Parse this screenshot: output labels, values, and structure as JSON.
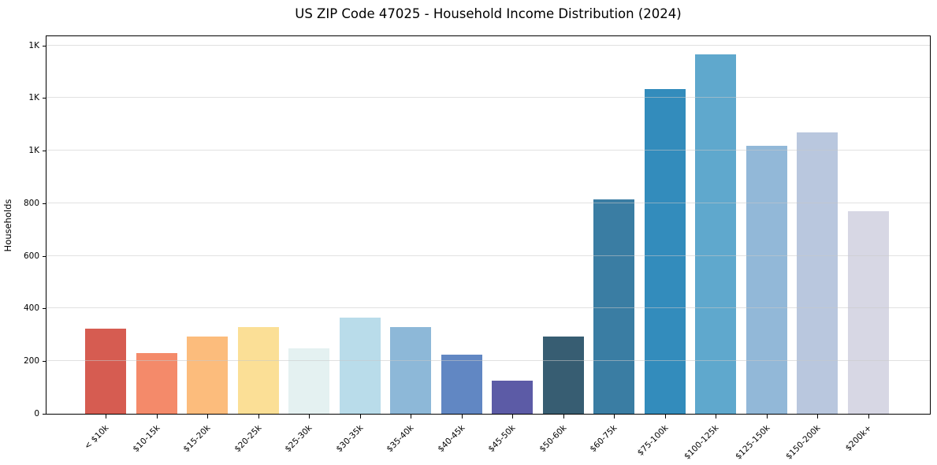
{
  "chart_data": {
    "type": "bar",
    "title": "US ZIP Code 47025 - Household Income Distribution (2024)",
    "xlabel": "",
    "ylabel": "Households",
    "categories": [
      "< $10k",
      "$10-15k",
      "$15-20k",
      "$20-25k",
      "$25-30k",
      "$30-35k",
      "$35-40k",
      "$40-45k",
      "$45-50k",
      "$50-60k",
      "$60-75k",
      "$75-100k",
      "$100-125k",
      "$125-150k",
      "$150-200k",
      "$200k+"
    ],
    "values": [
      325,
      230,
      295,
      330,
      250,
      365,
      330,
      225,
      125,
      295,
      815,
      1235,
      1365,
      1020,
      1070,
      770
    ],
    "bar_colors": [
      "#d65c51",
      "#f48a6a",
      "#fcbc7c",
      "#fbdf96",
      "#e4f1f1",
      "#b9dcea",
      "#8db8d8",
      "#6187c3",
      "#5c5ba6",
      "#375d72",
      "#3a7da3",
      "#338cbc",
      "#5fa8cd",
      "#92b8d8",
      "#b9c7de",
      "#d7d7e4"
    ],
    "ylim": [
      0,
      1435
    ],
    "yticks": {
      "values": [
        0,
        200,
        400,
        600,
        800,
        1000,
        1200,
        1400
      ],
      "labels": [
        "0",
        "200",
        "400",
        "600",
        "800",
        "1K",
        "1K",
        "1K"
      ]
    },
    "grid": "horizontal",
    "legend_position": "none",
    "background_color": "#ffffff",
    "text_color": "#000000"
  }
}
